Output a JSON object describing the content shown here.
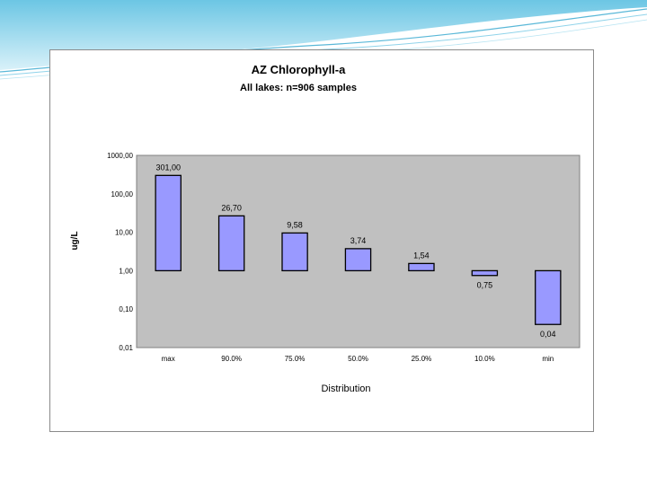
{
  "chart_data": {
    "type": "bar",
    "title": "AZ Chlorophyll-a",
    "subtitle": "All lakes: n=906 samples",
    "xlabel": "Distribution",
    "ylabel": "ug/L",
    "yscale": "log",
    "ylim": [
      0.01,
      1000
    ],
    "yticks": [
      "1000,00",
      "100,00",
      "10,00",
      "1,00",
      "0,10",
      "0,01"
    ],
    "categories": [
      "max",
      "90.0%",
      "75.0%",
      "50.0%",
      "25.0%",
      "10.0%",
      "min"
    ],
    "values": [
      301.0,
      26.7,
      9.58,
      3.74,
      1.54,
      0.75,
      0.04
    ],
    "value_labels": [
      "301,00",
      "26,70",
      "9,58",
      "3,74",
      "1,54",
      "0,75",
      "0,04"
    ],
    "bar_color": "#9999ff",
    "plot_background": "#c0c0c0",
    "grid": false,
    "legend": "none"
  }
}
